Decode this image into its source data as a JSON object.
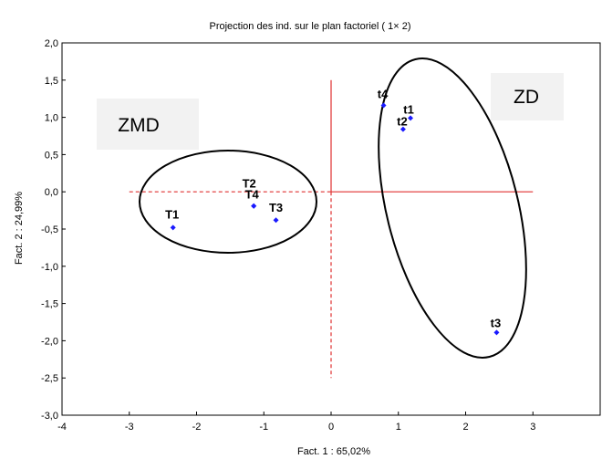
{
  "chart_data": {
    "type": "scatter",
    "title": "Projection des ind. sur le plan factoriel ( 1× 2)",
    "xlabel": "Fact. 1 : 65,02%",
    "ylabel": "Fact. 2 : 24,99%",
    "xlim": [
      -4,
      4
    ],
    "ylim": [
      -3,
      2
    ],
    "x_ticks": [
      "-4",
      "-3",
      "-2",
      "-1",
      "0",
      "1",
      "2",
      "3"
    ],
    "y_ticks": [
      "2,0",
      "1,5",
      "1,0",
      "0,5",
      "0,0",
      "-0,5",
      "-1,0",
      "-1,5",
      "-2,0",
      "-2,5",
      "-3,0"
    ],
    "grid": false,
    "points": [
      {
        "label": "T1",
        "x": -2.35,
        "y": -0.48
      },
      {
        "label": "T2",
        "x": -1.15,
        "y": -0.19
      },
      {
        "label": "T4",
        "x": -1.15,
        "y": -0.19
      },
      {
        "label": "T3",
        "x": -0.82,
        "y": -0.38
      },
      {
        "label": "t4",
        "x": 0.78,
        "y": 1.16
      },
      {
        "label": "t1",
        "x": 1.18,
        "y": 0.99
      },
      {
        "label": "t2",
        "x": 1.07,
        "y": 0.84
      },
      {
        "label": "t3",
        "x": 2.46,
        "y": -1.89
      }
    ],
    "groups": [
      "ZMD",
      "ZD"
    ],
    "marker_color": "#1a1aff",
    "reference_line_color": "#e03030"
  }
}
